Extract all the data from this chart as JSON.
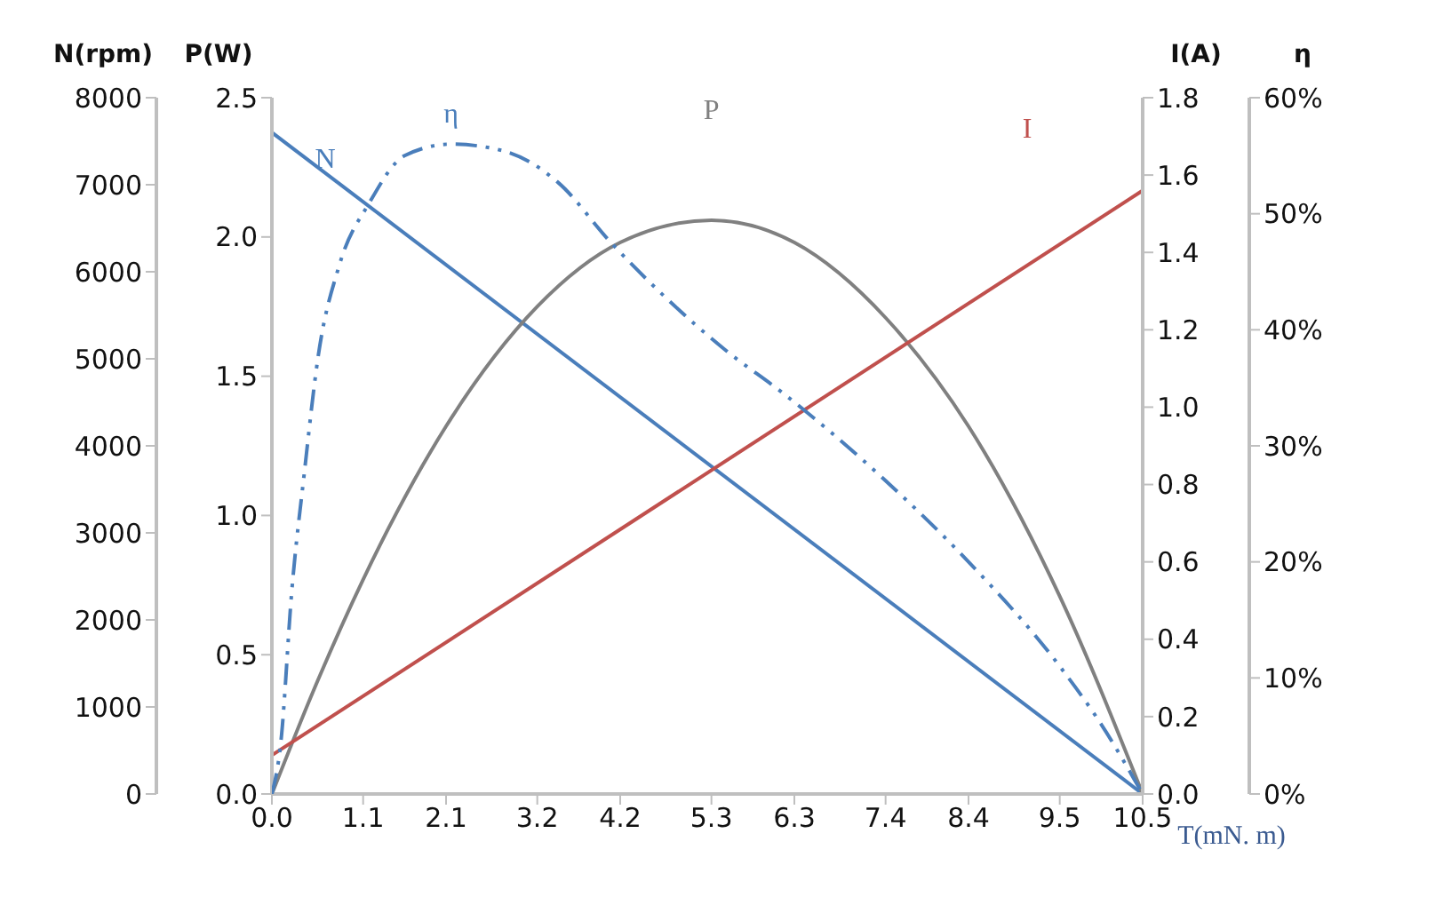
{
  "chart_data": [
    {
      "type": "line",
      "xlabel": "T(mN. m)",
      "ylabel": "P(W)",
      "y2label": "N(rpm)",
      "y3label": "I(A)",
      "xlim": [
        0,
        10.5
      ],
      "xticks": [
        {
          "value": 0,
          "label": "0.0"
        },
        1.1,
        2.1,
        3.2,
        4.2,
        5.3,
        6.3,
        7.4,
        8.4,
        9.5,
        10.5
      ],
      "ylim": [
        0,
        2.5
      ],
      "yticks": [
        {
          "value": 0,
          "label": "0.0"
        },
        0.5,
        {
          "value": 1,
          "label": "1.0"
        },
        1.5,
        {
          "value": 2,
          "label": "2.0"
        },
        2.5
      ],
      "y2lim": [
        0,
        8000
      ],
      "y2ticks": [
        0,
        1000,
        2000,
        3000,
        4000,
        5000,
        6000,
        7000,
        8000
      ],
      "y3lim": [
        0,
        1.8
      ],
      "y3ticks": [
        {
          "value": 0,
          "label": "0.0"
        },
        0.2,
        0.4,
        0.6,
        0.8,
        {
          "value": 1,
          "label": "1.0"
        },
        1.2,
        1.4,
        1.6,
        1.8
      ],
      "grid": false,
      "legend": false,
      "marker": "none",
      "series": [
        {
          "name": "N",
          "color": "#4a7ebb",
          "axis": "y2",
          "line_style": "solid",
          "x": [
            0,
            10.5
          ],
          "values": [
            7600,
            0
          ]
        },
        {
          "name": "P",
          "color": "#808080",
          "line_style": "solid",
          "x": [
            0,
            0.5,
            1.1,
            2.1,
            3.2,
            4.2,
            5.3,
            6.3,
            7.4,
            8.4,
            9.5,
            10.5
          ],
          "values": [
            0,
            0.37,
            0.77,
            1.32,
            1.75,
            1.98,
            2.06,
            1.98,
            1.71,
            1.32,
            0.71,
            0
          ]
        },
        {
          "name": "I",
          "color": "#c0504d",
          "axis": "y3",
          "line_style": "solid",
          "x": [
            0,
            10.5
          ],
          "values": [
            0.1,
            1.56
          ]
        }
      ]
    },
    {
      "type": "line",
      "ylabel": "η",
      "tick_labels": "y",
      "xlim": [
        0,
        10.5
      ],
      "ylim": [
        0,
        60
      ],
      "yticks": [
        {
          "value": 0,
          "label": "0%"
        },
        {
          "value": 10,
          "label": "10%"
        },
        {
          "value": 20,
          "label": "20%"
        },
        {
          "value": 30,
          "label": "30%"
        },
        {
          "value": 40,
          "label": "40%"
        },
        {
          "value": 50,
          "label": "50%"
        },
        {
          "value": 60,
          "label": "60%"
        }
      ],
      "grid": false,
      "legend": false,
      "marker": "none",
      "series": [
        {
          "name": "η",
          "color": "#4a7ebb",
          "line_style": "dashed",
          "x": [
            0,
            0.11,
            0.24,
            0.39,
            0.56,
            0.81,
            1.18,
            1.6,
            2.16,
            2.8,
            3.45,
            4.09,
            4.73,
            5.46,
            6.17,
            7.4,
            8.4,
            9.5,
            10,
            10.5
          ],
          "values": [
            0,
            4.6,
            17.5,
            27.6,
            37.8,
            45.5,
            51,
            55,
            56,
            55.4,
            52.7,
            47.5,
            42.9,
            38.3,
            34.5,
            27,
            20,
            11,
            6,
            0
          ]
        }
      ]
    }
  ]
}
